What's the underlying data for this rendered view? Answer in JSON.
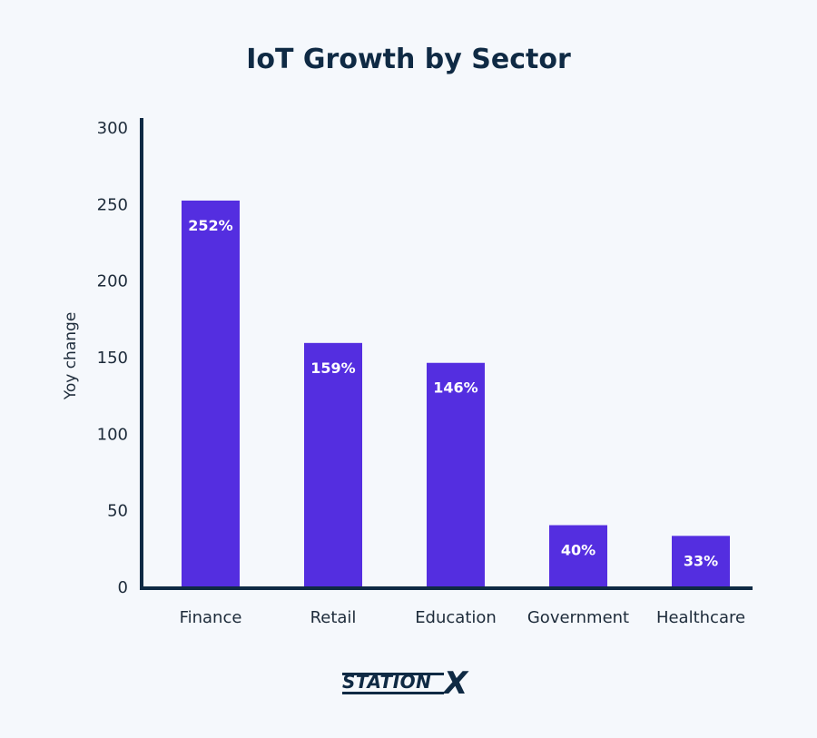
{
  "chart_data": {
    "type": "bar",
    "title": "IoT Growth by Sector",
    "xlabel": "",
    "ylabel": "Yoy change",
    "categories": [
      "Finance",
      "Retail",
      "Education",
      "Government",
      "Healthcare"
    ],
    "values": [
      252,
      159,
      146,
      40,
      33
    ],
    "value_labels": [
      "252%",
      "159%",
      "146%",
      "40%",
      "33%"
    ],
    "yticks": [
      0,
      50,
      100,
      150,
      200,
      250,
      300
    ],
    "ylim": [
      0,
      300
    ],
    "grid": false,
    "bar_color": "#542ee0"
  },
  "brand": {
    "logo_text": "STATION",
    "logo_mark": "X"
  },
  "colors": {
    "axis": "#0f2a44",
    "background": "#f5f8fc"
  }
}
